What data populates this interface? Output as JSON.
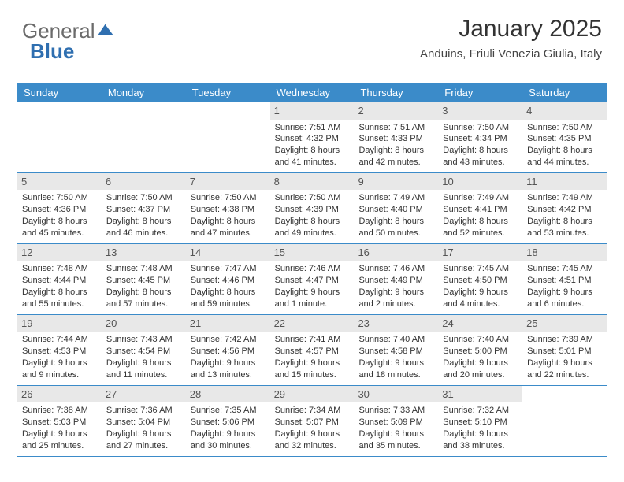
{
  "brand": {
    "part1": "General",
    "part2": "Blue"
  },
  "title": "January 2025",
  "location": "Anduins, Friuli Venezia Giulia, Italy",
  "colors": {
    "header_bg": "#3b8bc9",
    "header_text": "#ffffff",
    "daynum_bg": "#e8e8e8",
    "body_text": "#333333",
    "brand_gray": "#6b6b6b",
    "brand_blue": "#2f6fb0"
  },
  "weekdays": [
    "Sunday",
    "Monday",
    "Tuesday",
    "Wednesday",
    "Thursday",
    "Friday",
    "Saturday"
  ],
  "weeks": [
    [
      {
        "n": "",
        "empty": true
      },
      {
        "n": "",
        "empty": true
      },
      {
        "n": "",
        "empty": true
      },
      {
        "n": "1",
        "sunrise": "Sunrise: 7:51 AM",
        "sunset": "Sunset: 4:32 PM",
        "d1": "Daylight: 8 hours",
        "d2": "and 41 minutes."
      },
      {
        "n": "2",
        "sunrise": "Sunrise: 7:51 AM",
        "sunset": "Sunset: 4:33 PM",
        "d1": "Daylight: 8 hours",
        "d2": "and 42 minutes."
      },
      {
        "n": "3",
        "sunrise": "Sunrise: 7:50 AM",
        "sunset": "Sunset: 4:34 PM",
        "d1": "Daylight: 8 hours",
        "d2": "and 43 minutes."
      },
      {
        "n": "4",
        "sunrise": "Sunrise: 7:50 AM",
        "sunset": "Sunset: 4:35 PM",
        "d1": "Daylight: 8 hours",
        "d2": "and 44 minutes."
      }
    ],
    [
      {
        "n": "5",
        "sunrise": "Sunrise: 7:50 AM",
        "sunset": "Sunset: 4:36 PM",
        "d1": "Daylight: 8 hours",
        "d2": "and 45 minutes."
      },
      {
        "n": "6",
        "sunrise": "Sunrise: 7:50 AM",
        "sunset": "Sunset: 4:37 PM",
        "d1": "Daylight: 8 hours",
        "d2": "and 46 minutes."
      },
      {
        "n": "7",
        "sunrise": "Sunrise: 7:50 AM",
        "sunset": "Sunset: 4:38 PM",
        "d1": "Daylight: 8 hours",
        "d2": "and 47 minutes."
      },
      {
        "n": "8",
        "sunrise": "Sunrise: 7:50 AM",
        "sunset": "Sunset: 4:39 PM",
        "d1": "Daylight: 8 hours",
        "d2": "and 49 minutes."
      },
      {
        "n": "9",
        "sunrise": "Sunrise: 7:49 AM",
        "sunset": "Sunset: 4:40 PM",
        "d1": "Daylight: 8 hours",
        "d2": "and 50 minutes."
      },
      {
        "n": "10",
        "sunrise": "Sunrise: 7:49 AM",
        "sunset": "Sunset: 4:41 PM",
        "d1": "Daylight: 8 hours",
        "d2": "and 52 minutes."
      },
      {
        "n": "11",
        "sunrise": "Sunrise: 7:49 AM",
        "sunset": "Sunset: 4:42 PM",
        "d1": "Daylight: 8 hours",
        "d2": "and 53 minutes."
      }
    ],
    [
      {
        "n": "12",
        "sunrise": "Sunrise: 7:48 AM",
        "sunset": "Sunset: 4:44 PM",
        "d1": "Daylight: 8 hours",
        "d2": "and 55 minutes."
      },
      {
        "n": "13",
        "sunrise": "Sunrise: 7:48 AM",
        "sunset": "Sunset: 4:45 PM",
        "d1": "Daylight: 8 hours",
        "d2": "and 57 minutes."
      },
      {
        "n": "14",
        "sunrise": "Sunrise: 7:47 AM",
        "sunset": "Sunset: 4:46 PM",
        "d1": "Daylight: 8 hours",
        "d2": "and 59 minutes."
      },
      {
        "n": "15",
        "sunrise": "Sunrise: 7:46 AM",
        "sunset": "Sunset: 4:47 PM",
        "d1": "Daylight: 9 hours",
        "d2": "and 1 minute."
      },
      {
        "n": "16",
        "sunrise": "Sunrise: 7:46 AM",
        "sunset": "Sunset: 4:49 PM",
        "d1": "Daylight: 9 hours",
        "d2": "and 2 minutes."
      },
      {
        "n": "17",
        "sunrise": "Sunrise: 7:45 AM",
        "sunset": "Sunset: 4:50 PM",
        "d1": "Daylight: 9 hours",
        "d2": "and 4 minutes."
      },
      {
        "n": "18",
        "sunrise": "Sunrise: 7:45 AM",
        "sunset": "Sunset: 4:51 PM",
        "d1": "Daylight: 9 hours",
        "d2": "and 6 minutes."
      }
    ],
    [
      {
        "n": "19",
        "sunrise": "Sunrise: 7:44 AM",
        "sunset": "Sunset: 4:53 PM",
        "d1": "Daylight: 9 hours",
        "d2": "and 9 minutes."
      },
      {
        "n": "20",
        "sunrise": "Sunrise: 7:43 AM",
        "sunset": "Sunset: 4:54 PM",
        "d1": "Daylight: 9 hours",
        "d2": "and 11 minutes."
      },
      {
        "n": "21",
        "sunrise": "Sunrise: 7:42 AM",
        "sunset": "Sunset: 4:56 PM",
        "d1": "Daylight: 9 hours",
        "d2": "and 13 minutes."
      },
      {
        "n": "22",
        "sunrise": "Sunrise: 7:41 AM",
        "sunset": "Sunset: 4:57 PM",
        "d1": "Daylight: 9 hours",
        "d2": "and 15 minutes."
      },
      {
        "n": "23",
        "sunrise": "Sunrise: 7:40 AM",
        "sunset": "Sunset: 4:58 PM",
        "d1": "Daylight: 9 hours",
        "d2": "and 18 minutes."
      },
      {
        "n": "24",
        "sunrise": "Sunrise: 7:40 AM",
        "sunset": "Sunset: 5:00 PM",
        "d1": "Daylight: 9 hours",
        "d2": "and 20 minutes."
      },
      {
        "n": "25",
        "sunrise": "Sunrise: 7:39 AM",
        "sunset": "Sunset: 5:01 PM",
        "d1": "Daylight: 9 hours",
        "d2": "and 22 minutes."
      }
    ],
    [
      {
        "n": "26",
        "sunrise": "Sunrise: 7:38 AM",
        "sunset": "Sunset: 5:03 PM",
        "d1": "Daylight: 9 hours",
        "d2": "and 25 minutes."
      },
      {
        "n": "27",
        "sunrise": "Sunrise: 7:36 AM",
        "sunset": "Sunset: 5:04 PM",
        "d1": "Daylight: 9 hours",
        "d2": "and 27 minutes."
      },
      {
        "n": "28",
        "sunrise": "Sunrise: 7:35 AM",
        "sunset": "Sunset: 5:06 PM",
        "d1": "Daylight: 9 hours",
        "d2": "and 30 minutes."
      },
      {
        "n": "29",
        "sunrise": "Sunrise: 7:34 AM",
        "sunset": "Sunset: 5:07 PM",
        "d1": "Daylight: 9 hours",
        "d2": "and 32 minutes."
      },
      {
        "n": "30",
        "sunrise": "Sunrise: 7:33 AM",
        "sunset": "Sunset: 5:09 PM",
        "d1": "Daylight: 9 hours",
        "d2": "and 35 minutes."
      },
      {
        "n": "31",
        "sunrise": "Sunrise: 7:32 AM",
        "sunset": "Sunset: 5:10 PM",
        "d1": "Daylight: 9 hours",
        "d2": "and 38 minutes."
      },
      {
        "n": "",
        "empty": true
      }
    ]
  ]
}
